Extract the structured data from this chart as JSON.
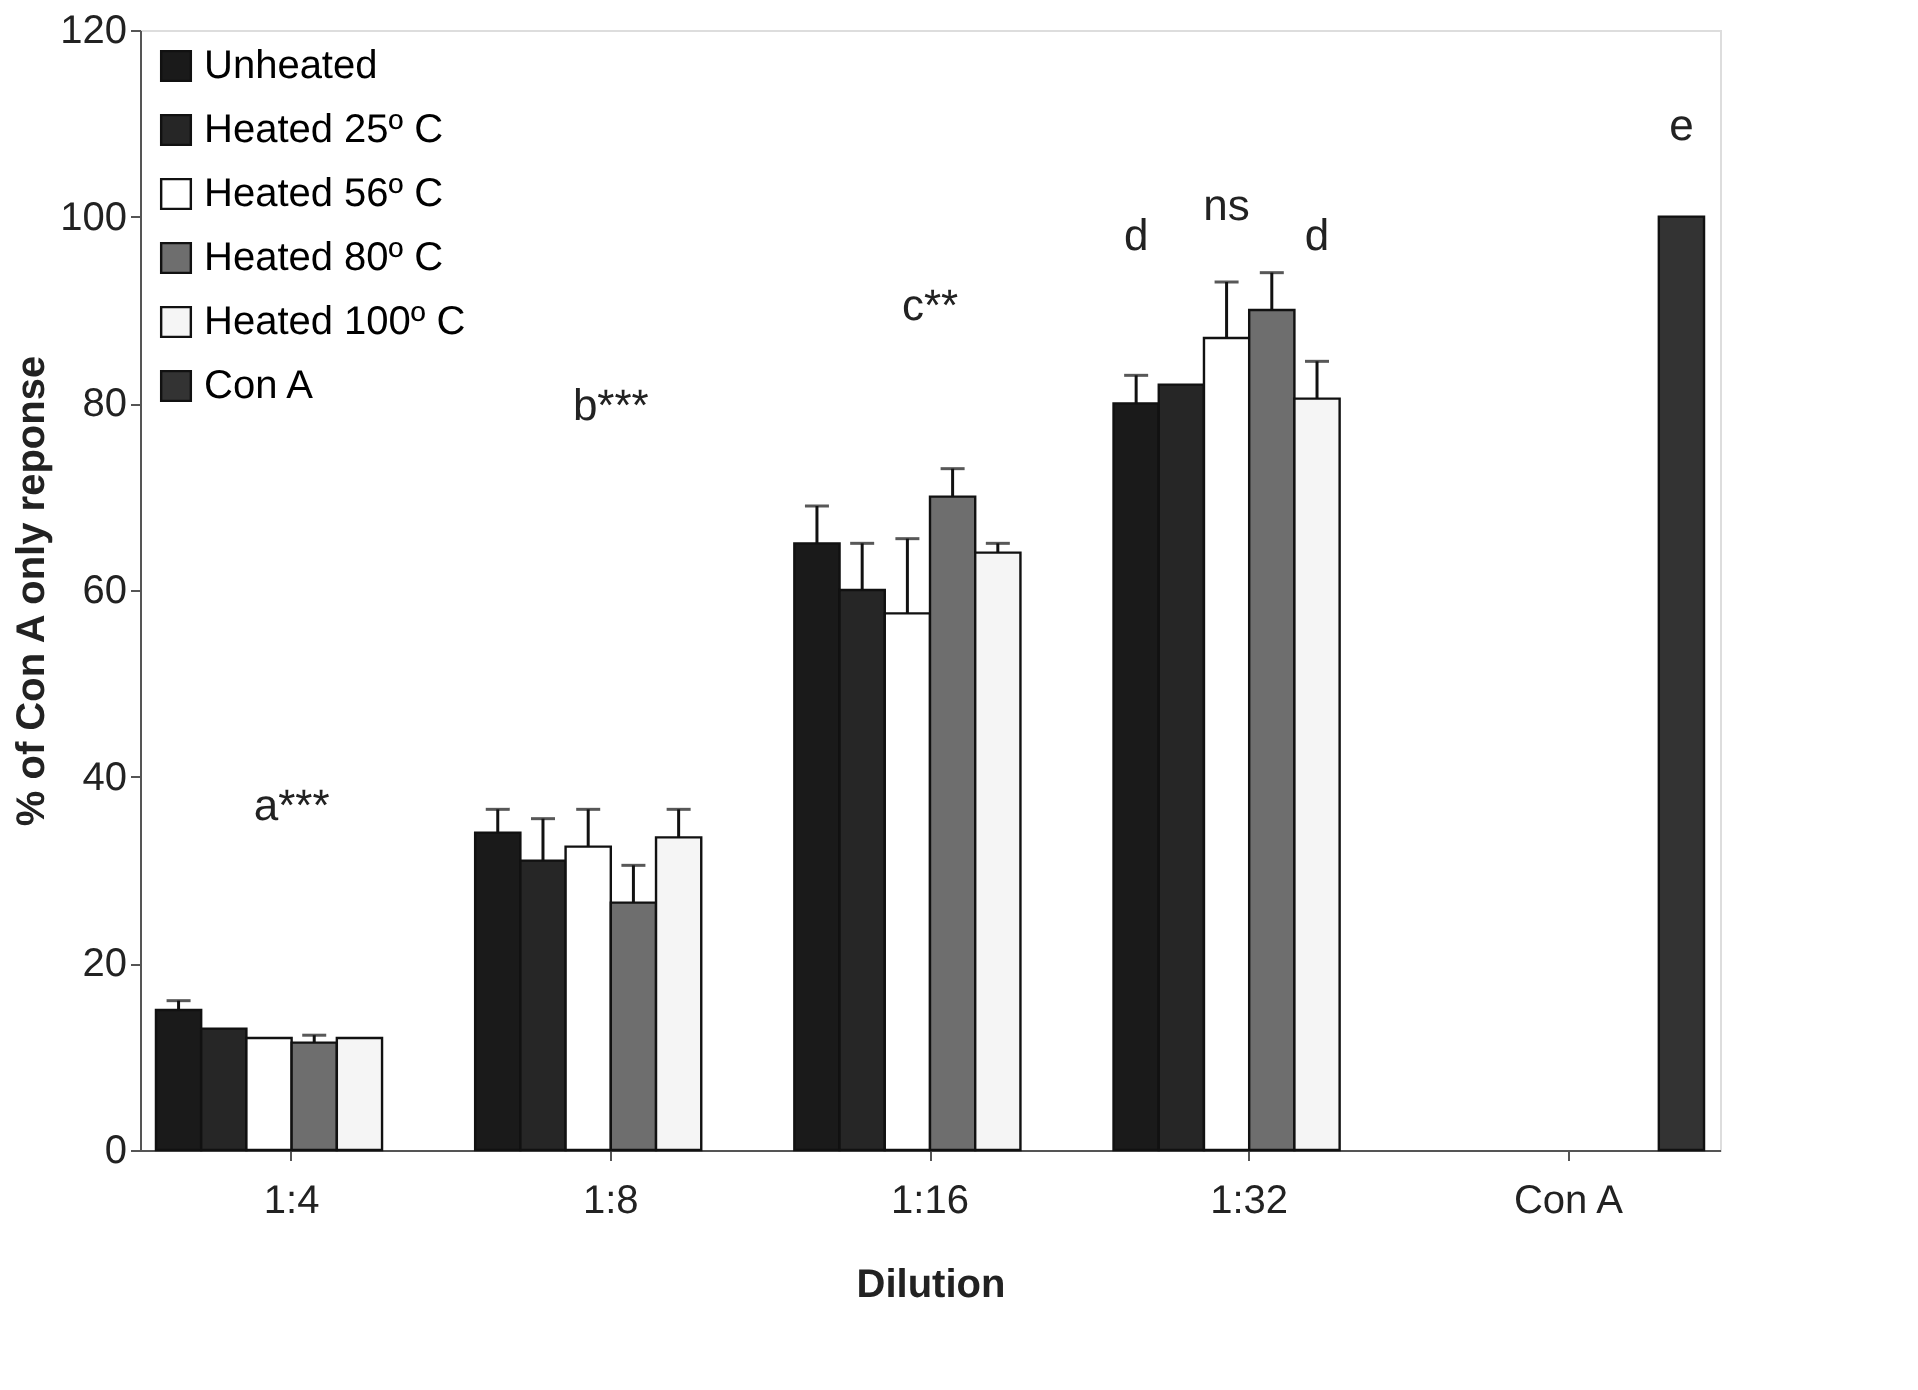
{
  "chart_data": {
    "type": "bar",
    "xlabel": "Dilution",
    "ylabel": "% of Con A only reponse",
    "categories": [
      "1:4",
      "1:8",
      "1:16",
      "1:32",
      "Con A"
    ],
    "series": [
      {
        "name": "Unheated",
        "color": "#1a1a1a",
        "values": [
          15,
          34,
          65,
          80,
          null
        ],
        "errors": [
          1,
          2.5,
          4,
          3,
          null
        ]
      },
      {
        "name": "Heated 25º C",
        "color": "#262626",
        "values": [
          13,
          31,
          60,
          82,
          null
        ],
        "errors": [
          null,
          4.5,
          5,
          null,
          null
        ]
      },
      {
        "name": "Heated 56º C",
        "color": "#ffffff",
        "values": [
          12,
          32.5,
          57.5,
          87,
          null
        ],
        "errors": [
          null,
          4,
          8,
          6,
          null
        ]
      },
      {
        "name": "Heated 80º C",
        "color": "#6e6e6e",
        "values": [
          11.5,
          26.5,
          70,
          90,
          null
        ],
        "errors": [
          0.8,
          4,
          3,
          4,
          null
        ]
      },
      {
        "name": "Heated 100º C",
        "color": "#f5f5f5",
        "values": [
          12,
          33.5,
          64,
          80.5,
          null
        ],
        "errors": [
          null,
          3,
          1,
          4,
          null
        ]
      },
      {
        "name": "Con A",
        "color": "#333333",
        "values": [
          null,
          null,
          null,
          null,
          100
        ],
        "errors": [
          null,
          null,
          null,
          null,
          null
        ]
      }
    ],
    "ylim": [
      0,
      120
    ],
    "yticks": [
      0,
      20,
      40,
      60,
      80,
      100,
      120
    ],
    "grid": false,
    "legend": "top left",
    "annotations": [
      "a***",
      "b***",
      "c**",
      "d",
      "ns",
      "d",
      "e"
    ]
  }
}
